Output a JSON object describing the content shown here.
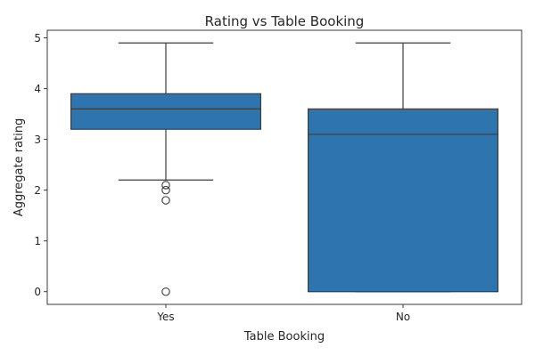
{
  "chart_data": {
    "type": "box",
    "title": "Rating vs Table Booking",
    "xlabel": "Table Booking",
    "ylabel": "Aggregate rating",
    "categories": [
      "Yes",
      "No"
    ],
    "ylim": [
      -0.25,
      5.15
    ],
    "yticks": [
      0,
      1,
      2,
      3,
      4,
      5
    ],
    "box_color": "#2e75b0",
    "line_color": "#3d3d3d",
    "boxes": [
      {
        "category": "Yes",
        "whisker_low": 2.2,
        "q1": 3.2,
        "median": 3.6,
        "q3": 3.9,
        "whisker_high": 4.9,
        "outliers": [
          2.1,
          2.0,
          1.8,
          0.0
        ]
      },
      {
        "category": "No",
        "whisker_low": 0.0,
        "q1": 0.0,
        "median": 3.1,
        "q3": 3.6,
        "whisker_high": 4.9,
        "outliers": []
      }
    ]
  }
}
